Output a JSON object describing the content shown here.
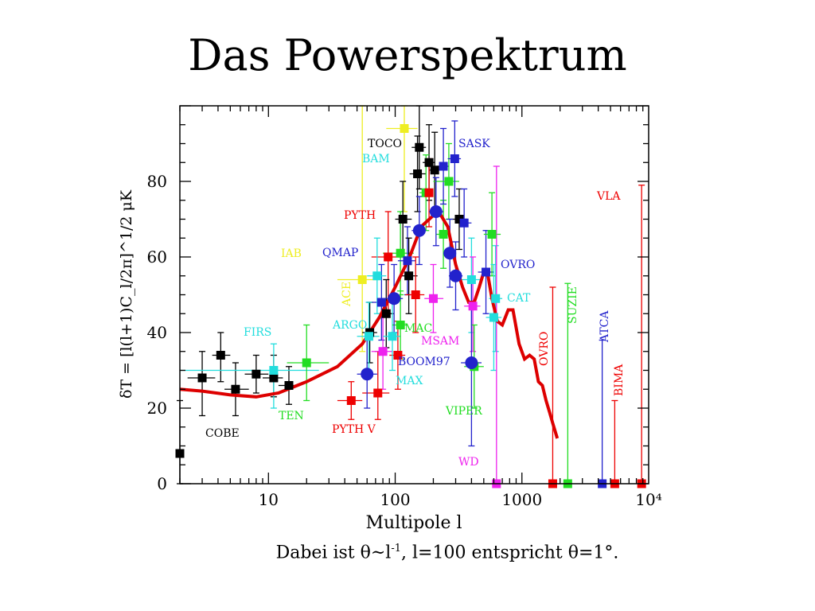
{
  "slide": {
    "title": "Das Powerspektrum",
    "caption_prefix": "Dabei ist θ~l",
    "caption_exp": "-1",
    "caption_suffix": ", l=100 entspricht θ=1°."
  },
  "chart_data": {
    "type": "scatter",
    "title": "",
    "xlabel": "Multipole l",
    "ylabel": "δT = [l(l+1)C_l/2π]^1/2 μK",
    "xscale": "log",
    "xlim": [
      2,
      10000
    ],
    "ylim": [
      0,
      100
    ],
    "x_ticks": [
      "10",
      "100",
      "1000",
      "10⁴"
    ],
    "y_ticks": [
      "0",
      "20",
      "40",
      "60",
      "80"
    ],
    "grid": false,
    "colors": {
      "black": "#000000",
      "red": "#ee0000",
      "green": "#22dd22",
      "blue": "#2222cc",
      "cyan": "#22dddd",
      "magenta": "#ee22ee",
      "yellow": "#eeee22",
      "theory": "#dd0000"
    },
    "labels": [
      {
        "text": "COBE",
        "color": "black"
      },
      {
        "text": "FIRS",
        "color": "cyan"
      },
      {
        "text": "TEN",
        "color": "green"
      },
      {
        "text": "PYTH V",
        "color": "red"
      },
      {
        "text": "TOCO",
        "color": "black"
      },
      {
        "text": "SASK",
        "color": "blue"
      },
      {
        "text": "BAM",
        "color": "cyan"
      },
      {
        "text": "PYTH",
        "color": "red"
      },
      {
        "text": "IAB",
        "color": "yellow"
      },
      {
        "text": "QMAP",
        "color": "blue"
      },
      {
        "text": "ACE",
        "color": "yellow"
      },
      {
        "text": "ARGO",
        "color": "cyan"
      },
      {
        "text": "MAC",
        "color": "green"
      },
      {
        "text": "MSAM",
        "color": "magenta"
      },
      {
        "text": "BOOM97",
        "color": "blue"
      },
      {
        "text": "MAX",
        "color": "cyan"
      },
      {
        "text": "VIPER",
        "color": "green"
      },
      {
        "text": "WD",
        "color": "magenta"
      },
      {
        "text": "OVRO",
        "color": "blue"
      },
      {
        "text": "CAT",
        "color": "cyan"
      },
      {
        "text": "OVRO",
        "color": "red"
      },
      {
        "text": "SUZIE",
        "color": "green"
      },
      {
        "text": "ATCA",
        "color": "blue"
      },
      {
        "text": "BIMA",
        "color": "red"
      },
      {
        "text": "VLA",
        "color": "red"
      }
    ],
    "theory_curve": [
      [
        2,
        25
      ],
      [
        3,
        24.5
      ],
      [
        5,
        23.5
      ],
      [
        8,
        23
      ],
      [
        12,
        24
      ],
      [
        20,
        27
      ],
      [
        35,
        31
      ],
      [
        55,
        37
      ],
      [
        75,
        44
      ],
      [
        100,
        52
      ],
      [
        130,
        60
      ],
      [
        160,
        68
      ],
      [
        200,
        71
      ],
      [
        230,
        71
      ],
      [
        260,
        68
      ],
      [
        300,
        58
      ],
      [
        340,
        52
      ],
      [
        380,
        48
      ],
      [
        420,
        48
      ],
      [
        460,
        52
      ],
      [
        500,
        56
      ],
      [
        540,
        55
      ],
      [
        580,
        49
      ],
      [
        640,
        43
      ],
      [
        700,
        42
      ],
      [
        780,
        46
      ],
      [
        850,
        46
      ],
      [
        950,
        37
      ],
      [
        1050,
        33
      ],
      [
        1150,
        34
      ],
      [
        1250,
        33
      ],
      [
        1350,
        27
      ],
      [
        1450,
        26
      ],
      [
        1550,
        22
      ],
      [
        1650,
        19
      ],
      [
        1750,
        16
      ],
      [
        1900,
        12
      ]
    ],
    "points": [
      {
        "x": 2,
        "y": 8,
        "ylo": 0,
        "yhi": 22,
        "color": "black",
        "m": "s"
      },
      {
        "x": 3,
        "y": 28,
        "ylo": 18,
        "yhi": 35,
        "xlo": 2.3,
        "xhi": 3.8,
        "color": "black",
        "m": "s"
      },
      {
        "x": 4.2,
        "y": 34,
        "ylo": 27,
        "yhi": 40,
        "xlo": 3.6,
        "xhi": 5,
        "color": "black",
        "m": "s"
      },
      {
        "x": 5.5,
        "y": 25,
        "ylo": 18,
        "yhi": 32,
        "xlo": 4.5,
        "xhi": 7,
        "color": "black",
        "m": "s"
      },
      {
        "x": 8,
        "y": 29,
        "ylo": 24,
        "yhi": 34,
        "xlo": 6.5,
        "xhi": 10,
        "color": "black",
        "m": "s"
      },
      {
        "x": 11,
        "y": 28,
        "ylo": 23,
        "yhi": 34,
        "xlo": 9,
        "xhi": 13,
        "color": "black",
        "m": "s"
      },
      {
        "x": 14.5,
        "y": 26,
        "ylo": 21,
        "yhi": 31,
        "xlo": 12,
        "xhi": 17,
        "color": "black",
        "m": "s"
      },
      {
        "x": 11,
        "y": 30,
        "ylo": 20,
        "yhi": 37,
        "xlo": 2,
        "xhi": 25,
        "color": "cyan",
        "m": "s"
      },
      {
        "x": 20,
        "y": 32,
        "ylo": 22,
        "yhi": 42,
        "xlo": 14,
        "xhi": 30,
        "color": "green",
        "m": "s"
      },
      {
        "x": 45,
        "y": 22,
        "ylo": 17,
        "yhi": 27,
        "xlo": 35,
        "xhi": 55,
        "color": "red",
        "m": "s"
      },
      {
        "x": 73,
        "y": 24,
        "ylo": 17,
        "yhi": 35,
        "xlo": 55,
        "xhi": 90,
        "color": "red",
        "m": "s"
      },
      {
        "x": 118,
        "y": 94,
        "ylo": 72,
        "yhi": 100,
        "xlo": 85,
        "xhi": 150,
        "color": "yellow",
        "m": "s"
      },
      {
        "x": 55,
        "y": 54,
        "ylo": 35,
        "yhi": 100,
        "xlo": 35,
        "xhi": 75,
        "color": "yellow",
        "m": "s"
      },
      {
        "x": 88,
        "y": 60,
        "ylo": 45,
        "yhi": 72,
        "xlo": 65,
        "xhi": 110,
        "color": "red",
        "m": "s"
      },
      {
        "x": 110,
        "y": 61,
        "ylo": 50,
        "yhi": 72,
        "xlo": 80,
        "xhi": 140,
        "color": "green",
        "m": "s"
      },
      {
        "x": 155,
        "y": 89,
        "ylo": 78,
        "yhi": 100,
        "xlo": 135,
        "xhi": 175,
        "color": "black",
        "m": "s"
      },
      {
        "x": 185,
        "y": 85,
        "ylo": 75,
        "yhi": 95,
        "xlo": 165,
        "xhi": 205,
        "color": "black",
        "m": "s"
      },
      {
        "x": 205,
        "y": 83,
        "ylo": 73,
        "yhi": 93,
        "xlo": 185,
        "xhi": 230,
        "color": "black",
        "m": "s"
      },
      {
        "x": 150,
        "y": 82,
        "ylo": 72,
        "yhi": 92,
        "xlo": 130,
        "xhi": 175,
        "color": "black",
        "m": "s"
      },
      {
        "x": 115,
        "y": 70,
        "ylo": 60,
        "yhi": 80,
        "xlo": 100,
        "xhi": 135,
        "color": "black",
        "m": "s"
      },
      {
        "x": 125,
        "y": 59,
        "ylo": 50,
        "yhi": 68,
        "xlo": 105,
        "xhi": 145,
        "color": "blue",
        "m": "s"
      },
      {
        "x": 128,
        "y": 55,
        "ylo": 45,
        "yhi": 65,
        "xlo": 110,
        "xhi": 150,
        "color": "black",
        "m": "s"
      },
      {
        "x": 63,
        "y": 40,
        "ylo": 32,
        "yhi": 48,
        "xlo": 55,
        "xhi": 72,
        "color": "black",
        "m": "s"
      },
      {
        "x": 85,
        "y": 45,
        "ylo": 36,
        "yhi": 54,
        "xlo": 75,
        "xhi": 98,
        "color": "black",
        "m": "s"
      },
      {
        "x": 78,
        "y": 48,
        "ylo": 38,
        "yhi": 58,
        "xlo": 65,
        "xhi": 95,
        "color": "blue",
        "m": "s"
      },
      {
        "x": 62,
        "y": 39,
        "ylo": 30,
        "yhi": 48,
        "xlo": 50,
        "xhi": 75,
        "color": "cyan",
        "m": "s"
      },
      {
        "x": 80,
        "y": 35,
        "ylo": 25,
        "yhi": 45,
        "xlo": 65,
        "xhi": 95,
        "color": "magenta",
        "m": "s"
      },
      {
        "x": 105,
        "y": 34,
        "ylo": 25,
        "yhi": 43,
        "xlo": 90,
        "xhi": 120,
        "color": "red",
        "m": "s"
      },
      {
        "x": 145,
        "y": 50,
        "ylo": 40,
        "yhi": 60,
        "xlo": 120,
        "xhi": 170,
        "color": "red",
        "m": "s"
      },
      {
        "x": 95,
        "y": 39,
        "ylo": 30,
        "yhi": 48,
        "xlo": 80,
        "xhi": 110,
        "color": "cyan",
        "m": "s"
      },
      {
        "x": 110,
        "y": 42,
        "ylo": 33,
        "yhi": 51,
        "xlo": 95,
        "xhi": 125,
        "color": "green",
        "m": "s"
      },
      {
        "x": 72,
        "y": 55,
        "ylo": 45,
        "yhi": 65,
        "xlo": 60,
        "xhi": 85,
        "color": "cyan",
        "m": "s"
      },
      {
        "x": 175,
        "y": 77,
        "ylo": 67,
        "yhi": 87,
        "xlo": 155,
        "xhi": 200,
        "color": "green",
        "m": "s"
      },
      {
        "x": 185,
        "y": 77,
        "ylo": 68,
        "yhi": 86,
        "xlo": 170,
        "xhi": 200,
        "color": "red",
        "m": "s"
      },
      {
        "x": 200,
        "y": 49,
        "ylo": 40,
        "yhi": 58,
        "xlo": 170,
        "xhi": 240,
        "color": "magenta",
        "m": "s"
      },
      {
        "x": 240,
        "y": 66,
        "ylo": 57,
        "yhi": 75,
        "xlo": 210,
        "xhi": 270,
        "color": "green",
        "m": "s"
      },
      {
        "x": 240,
        "y": 84,
        "ylo": 74,
        "yhi": 94,
        "xlo": 215,
        "xhi": 265,
        "color": "blue",
        "m": "s"
      },
      {
        "x": 265,
        "y": 80,
        "ylo": 70,
        "yhi": 90,
        "xlo": 200,
        "xhi": 320,
        "color": "green",
        "m": "s"
      },
      {
        "x": 295,
        "y": 86,
        "ylo": 76,
        "yhi": 96,
        "xlo": 260,
        "xhi": 330,
        "color": "blue",
        "m": "s"
      },
      {
        "x": 320,
        "y": 70,
        "ylo": 62,
        "yhi": 78,
        "xlo": 280,
        "xhi": 370,
        "color": "black",
        "m": "s"
      },
      {
        "x": 350,
        "y": 69,
        "ylo": 60,
        "yhi": 78,
        "xlo": 300,
        "xhi": 400,
        "color": "blue",
        "m": "s"
      },
      {
        "x": 400,
        "y": 54,
        "ylo": 40,
        "yhi": 65,
        "xlo": 320,
        "xhi": 480,
        "color": "cyan",
        "m": "s"
      },
      {
        "x": 410,
        "y": 47,
        "ylo": 35,
        "yhi": 60,
        "xlo": 350,
        "xhi": 470,
        "color": "magenta",
        "m": "s"
      },
      {
        "x": 420,
        "y": 31,
        "ylo": 20,
        "yhi": 42,
        "xlo": 350,
        "xhi": 500,
        "color": "green",
        "m": "s"
      },
      {
        "x": 520,
        "y": 56,
        "ylo": 45,
        "yhi": 67,
        "xlo": 450,
        "xhi": 600,
        "color": "blue",
        "m": "s"
      },
      {
        "x": 580,
        "y": 66,
        "ylo": 55,
        "yhi": 77,
        "xlo": 500,
        "xhi": 680,
        "color": "green",
        "m": "s"
      },
      {
        "x": 600,
        "y": 44,
        "ylo": 30,
        "yhi": 58,
        "xlo": 520,
        "xhi": 690,
        "color": "cyan",
        "m": "s"
      },
      {
        "x": 620,
        "y": 49,
        "ylo": 35,
        "yhi": 63,
        "xlo": 550,
        "xhi": 700,
        "color": "cyan",
        "m": "s"
      },
      {
        "x": 630,
        "y": 0,
        "ylo": 0,
        "yhi": 84,
        "color": "magenta",
        "m": "s"
      },
      {
        "x": 1750,
        "y": 0,
        "ylo": 0,
        "yhi": 52,
        "color": "red",
        "m": "s"
      },
      {
        "x": 2300,
        "y": 0,
        "ylo": 0,
        "yhi": 53,
        "color": "green",
        "m": "s"
      },
      {
        "x": 4300,
        "y": 0,
        "ylo": 0,
        "yhi": 38,
        "color": "blue",
        "m": "s"
      },
      {
        "x": 5400,
        "y": 0,
        "ylo": 0,
        "yhi": 22,
        "color": "red",
        "m": "s"
      },
      {
        "x": 8800,
        "y": 0,
        "ylo": 0,
        "yhi": 79,
        "color": "red",
        "m": "s"
      },
      {
        "x": 60,
        "y": 29,
        "ylo": 20,
        "yhi": 38,
        "xlo": 50,
        "xhi": 72,
        "color": "blue",
        "m": "c"
      },
      {
        "x": 98,
        "y": 49,
        "ylo": 40,
        "yhi": 58,
        "xlo": 85,
        "xhi": 115,
        "color": "blue",
        "m": "c"
      },
      {
        "x": 155,
        "y": 67,
        "ylo": 58,
        "yhi": 76,
        "xlo": 135,
        "xhi": 175,
        "color": "blue",
        "m": "c"
      },
      {
        "x": 210,
        "y": 72,
        "ylo": 63,
        "yhi": 81,
        "xlo": 185,
        "xhi": 240,
        "color": "blue",
        "m": "c"
      },
      {
        "x": 270,
        "y": 61,
        "ylo": 52,
        "yhi": 70,
        "xlo": 240,
        "xhi": 300,
        "color": "blue",
        "m": "c"
      },
      {
        "x": 300,
        "y": 55,
        "ylo": 46,
        "yhi": 64,
        "xlo": 265,
        "xhi": 340,
        "color": "blue",
        "m": "c"
      },
      {
        "x": 400,
        "y": 32,
        "ylo": 10,
        "yhi": 54,
        "xlo": 330,
        "xhi": 480,
        "color": "blue",
        "m": "c"
      }
    ]
  }
}
